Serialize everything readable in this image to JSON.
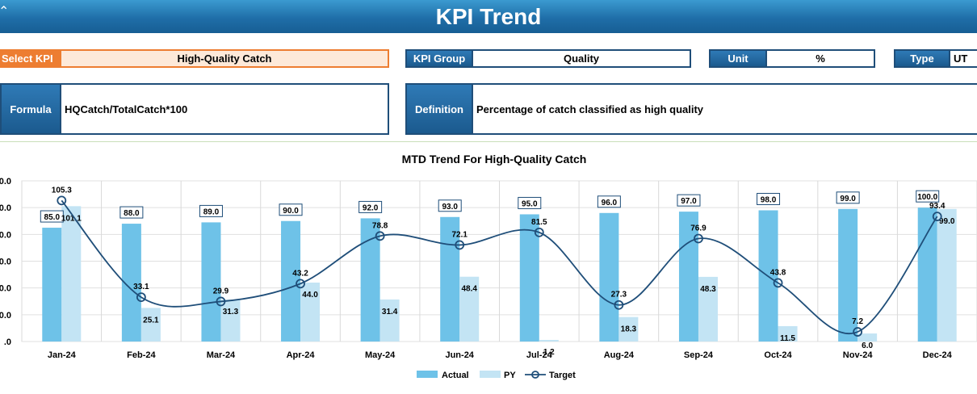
{
  "header": {
    "title": "KPI Trend"
  },
  "select_kpi": {
    "label": "Select KPI",
    "value": "High-Quality Catch"
  },
  "kpi_group": {
    "label": "KPI Group",
    "value": "Quality"
  },
  "unit": {
    "label": "Unit",
    "value": "%"
  },
  "type": {
    "label": "Type",
    "value": "UT"
  },
  "formula": {
    "label": "Formula",
    "value": "HQCatch/TotalCatch*100"
  },
  "definition": {
    "label": "Definition",
    "value": "Percentage of catch classified as high quality"
  },
  "colors": {
    "actual": "#6ec2e8",
    "py": "#c3e4f4",
    "target": "#1f4e79",
    "accent": "#1f6ea8",
    "orange": "#ed7d31"
  },
  "chart_data": {
    "type": "bar",
    "title": "MTD Trend For High-Quality Catch",
    "categories": [
      "Jan-24",
      "Feb-24",
      "Mar-24",
      "Apr-24",
      "May-24",
      "Jun-24",
      "Jul-24",
      "Aug-24",
      "Sep-24",
      "Oct-24",
      "Nov-24",
      "Dec-24"
    ],
    "ytick_labels": [
      ".0",
      "0.0",
      "0.0",
      "0.0",
      "0.0",
      "0.0",
      "0.0"
    ],
    "ylim": [
      0,
      120
    ],
    "grid": true,
    "legend_position": "bottom",
    "series": [
      {
        "name": "Actual",
        "type": "bar",
        "values": [
          85.0,
          88.0,
          89.0,
          90.0,
          92.0,
          93.0,
          95.0,
          96.0,
          97.0,
          98.0,
          99.0,
          100.0
        ]
      },
      {
        "name": "PY",
        "type": "bar",
        "values": [
          101.1,
          25.1,
          31.3,
          44.0,
          31.4,
          48.4,
          1.2,
          18.3,
          48.3,
          11.5,
          6.0,
          99.0
        ]
      },
      {
        "name": "Target",
        "type": "line",
        "values": [
          105.3,
          33.1,
          29.9,
          43.2,
          78.8,
          72.1,
          81.5,
          27.3,
          76.9,
          43.8,
          7.2,
          93.4
        ]
      }
    ]
  }
}
